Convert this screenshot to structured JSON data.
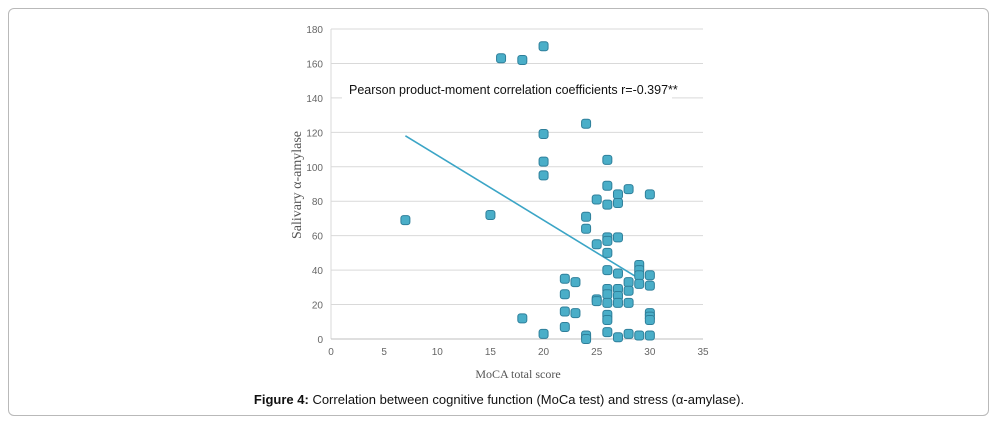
{
  "chart_data": {
    "type": "scatter",
    "xlabel": "MoCA total score",
    "ylabel": "Salivary α-amylase",
    "xlim": [
      0,
      35
    ],
    "ylim": [
      0,
      180
    ],
    "xticks": [
      0,
      5,
      10,
      15,
      20,
      25,
      30,
      35
    ],
    "yticks": [
      0,
      20,
      40,
      60,
      80,
      100,
      120,
      140,
      160,
      180
    ],
    "grid": "horizontal",
    "annotation": "Pearson product-moment correlation coefficients r=-0.397**",
    "marker_color": "#4aaec8",
    "marker_edge_color": "#2e7f9a",
    "trendline": {
      "color": "#3ba5c6",
      "x": [
        7,
        29
      ],
      "y": [
        118,
        35
      ]
    },
    "points": [
      [
        16,
        163
      ],
      [
        18,
        162
      ],
      [
        20,
        170
      ],
      [
        24,
        125
      ],
      [
        20,
        119
      ],
      [
        26,
        104
      ],
      [
        20,
        103
      ],
      [
        20,
        95
      ],
      [
        26,
        89
      ],
      [
        28,
        87
      ],
      [
        27,
        84
      ],
      [
        30,
        84
      ],
      [
        25,
        81
      ],
      [
        26,
        78
      ],
      [
        27,
        79
      ],
      [
        7,
        69
      ],
      [
        15,
        72
      ],
      [
        24,
        71
      ],
      [
        24,
        64
      ],
      [
        26,
        59
      ],
      [
        27,
        59
      ],
      [
        26,
        57
      ],
      [
        25,
        55
      ],
      [
        26,
        50
      ],
      [
        29,
        43
      ],
      [
        26,
        40
      ],
      [
        29,
        40
      ],
      [
        27,
        38
      ],
      [
        29,
        37
      ],
      [
        30,
        37
      ],
      [
        22,
        35
      ],
      [
        23,
        33
      ],
      [
        28,
        33
      ],
      [
        29,
        32
      ],
      [
        30,
        31
      ],
      [
        26,
        29
      ],
      [
        27,
        29
      ],
      [
        28,
        28
      ],
      [
        26,
        26
      ],
      [
        22,
        26
      ],
      [
        27,
        25
      ],
      [
        25,
        23
      ],
      [
        25,
        22
      ],
      [
        26,
        21
      ],
      [
        27,
        21
      ],
      [
        28,
        21
      ],
      [
        22,
        16
      ],
      [
        23,
        15
      ],
      [
        26,
        14
      ],
      [
        30,
        15
      ],
      [
        30,
        13
      ],
      [
        18,
        12
      ],
      [
        26,
        11
      ],
      [
        30,
        11
      ],
      [
        22,
        7
      ],
      [
        26,
        4
      ],
      [
        20,
        3
      ],
      [
        24,
        2
      ],
      [
        27,
        1
      ],
      [
        28,
        3
      ],
      [
        29,
        2
      ],
      [
        30,
        2
      ],
      [
        24,
        0
      ]
    ]
  },
  "caption": {
    "label": "Figure 4:",
    "text": "Correlation between cognitive function (MoCa test) and stress (α-amylase)."
  }
}
